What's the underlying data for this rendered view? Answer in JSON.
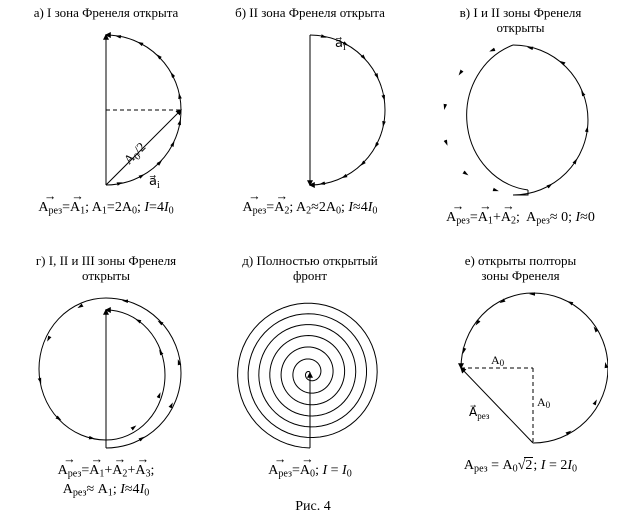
{
  "stroke": "#000000",
  "bg": "#ffffff",
  "strokeWidth": 1,
  "dash": "4,3",
  "figure_caption": "Рис. 4",
  "colPos": [
    6,
    210,
    418
  ],
  "rowTop": [
    4,
    260
  ],
  "panels": {
    "a": {
      "title": "а) I зона Френеля открыта",
      "label_ai": "a⃗",
      "label_ai_sub": "i",
      "label_A02": "A₀/2",
      "formula_html": "<span class=\"vec\">A<sub>рез</sub></span>=<span class=\"vec\">A<sub>1</sub></span>; A<sub>1</sub>=2A<sub>0</sub>; <i>I</i>=4<i>I</i><sub>0</sub>"
    },
    "b": {
      "title": "б) II зона Френеля открыта",
      "label_ai": "a⃗",
      "label_ai_sub": "i",
      "formula_html": "<span class=\"vec\">A<sub>рез</sub></span>=<span class=\"vec\">A<sub>2</sub></span>; A<sub>2</sub>≈2A<sub>0</sub>; <i>I</i>≈4<i>I</i><sub>0</sub>"
    },
    "v": {
      "title": "в) I и II зоны Френеля\nоткрыты",
      "formula_html": "<span class=\"vec\">A<sub>рез</sub></span>=<span class=\"vec\">A<sub>1</sub></span>+<span class=\"vec\">A<sub>2</sub></span>;&nbsp; A<sub>рез</sub>≈ 0; <i>I</i>≈0"
    },
    "g": {
      "title": "г) I, II и III зоны Френеля\nоткрыты",
      "formula_html": "<span class=\"vec\">A<sub>рез</sub></span>=<span class=\"vec\">A<sub>1</sub></span>+<span class=\"vec\">A<sub>2</sub></span>+<span class=\"vec\">A<sub>3</sub></span>;\nA<sub>рез</sub>≈ A<sub>1</sub>; <i>I</i>≈4<i>I</i><sub>0</sub>"
    },
    "d": {
      "title": "д) Полностью открытый\nфронт",
      "formula_html": "<span class=\"vec\">A<sub>рез</sub></span>=<span class=\"vec\">A<sub>0</sub></span>; <i>I</i> = <i>I</i><sub>0</sub>"
    },
    "e": {
      "title": "е) открыты полторы\nзоны Френеля",
      "label_A0": "A₀",
      "label_Ares": "A⃗",
      "label_Ares_sub": "рез",
      "formula_html": "A<sub>рез</sub> = A<sub>0</sub><span class=\"radic\">√</span><span class=\"sqrt\">2</span>; <i>I</i> = 2<i>I</i><sub>0</sub>"
    }
  }
}
